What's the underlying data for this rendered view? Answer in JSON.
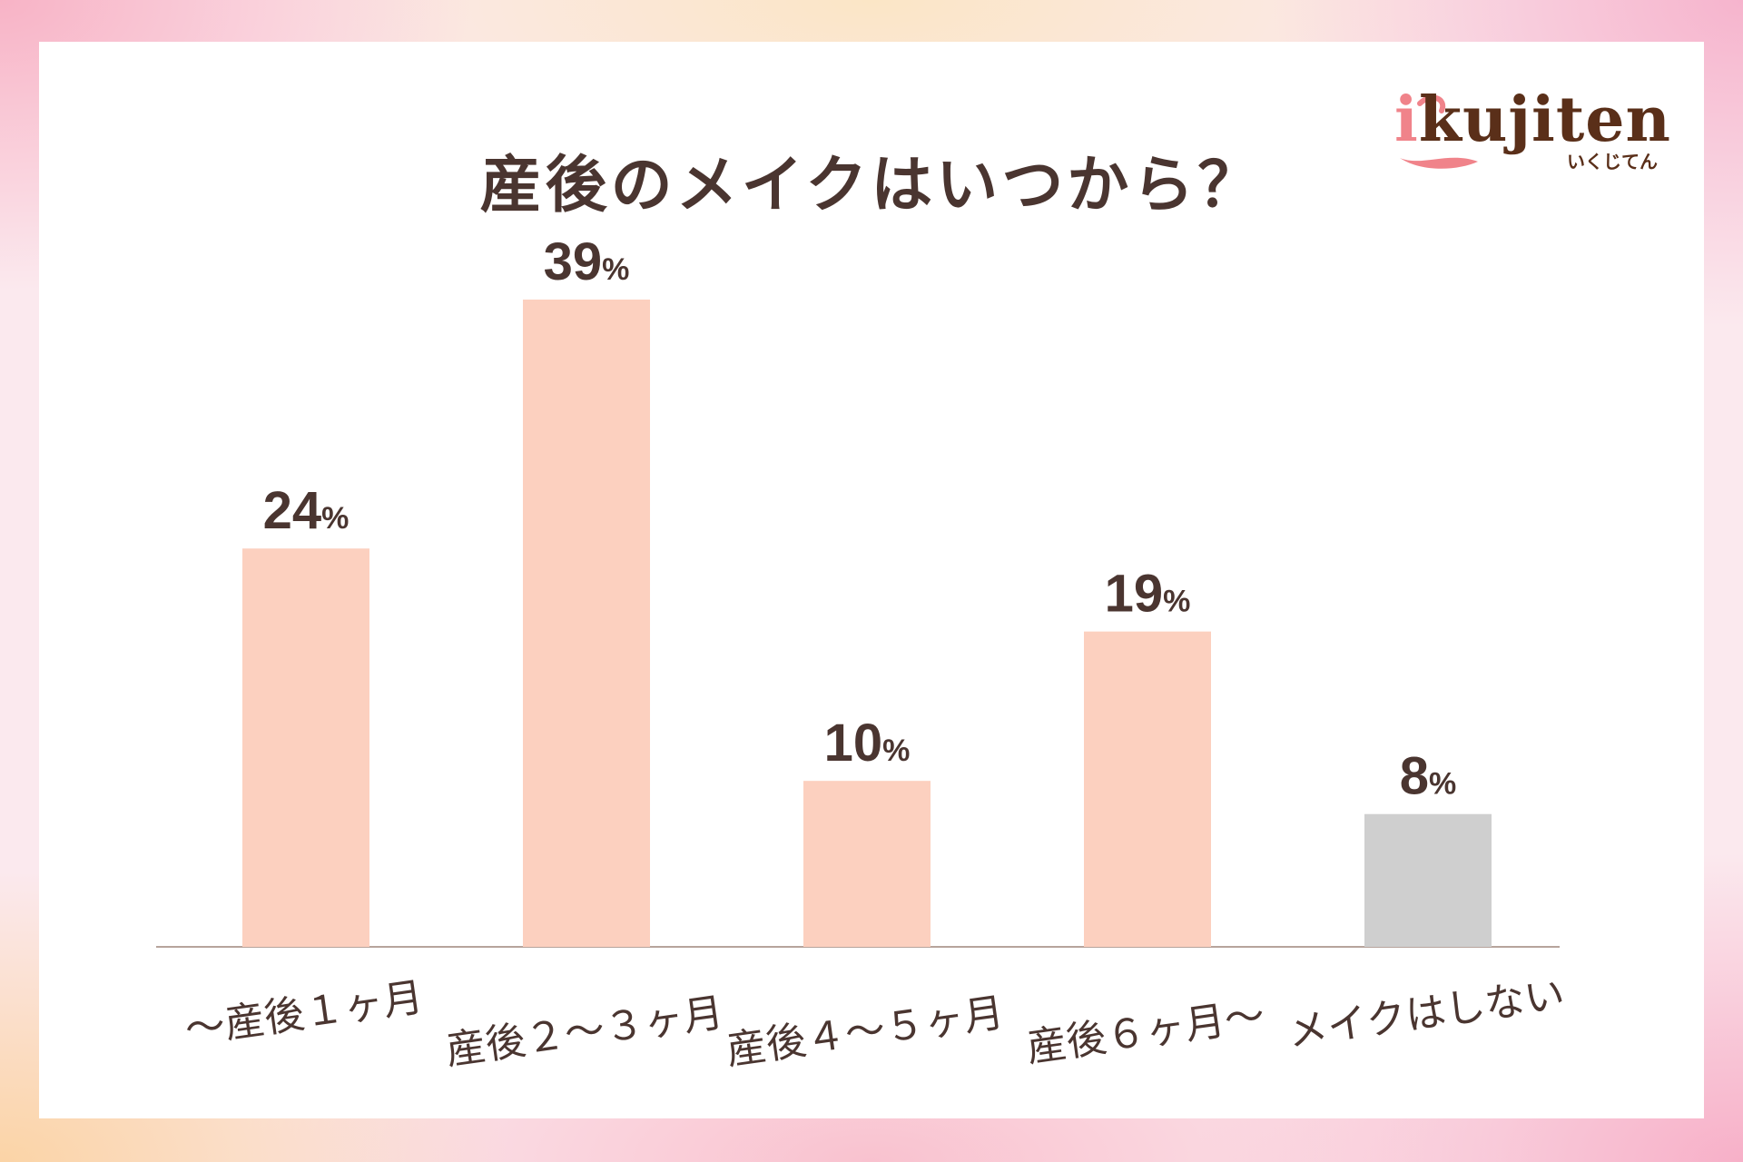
{
  "title": "産後のメイクはいつから？",
  "logo": {
    "initial": "i",
    "rest": "kujiten",
    "sub": "いくじてん"
  },
  "colors": {
    "bar": "#fcd0bf",
    "bar_muted": "#cfcfcf",
    "text": "#4a3530",
    "axis": "#b7a49c",
    "logo_brown": "#5a2f19",
    "logo_pink": "#f0838a"
  },
  "chart_data": {
    "type": "bar",
    "title": "産後のメイクはいつから？",
    "categories": [
      "〜産後１ヶ月",
      "産後２〜３ヶ月",
      "産後４〜５ヶ月",
      "産後６ヶ月〜",
      "メイクはしない"
    ],
    "values": [
      24,
      39,
      10,
      19,
      8
    ],
    "unit": "%",
    "highlight_muted": [
      false,
      false,
      false,
      false,
      true
    ],
    "ylim": [
      0,
      40
    ],
    "grid": false,
    "legend": "none"
  }
}
